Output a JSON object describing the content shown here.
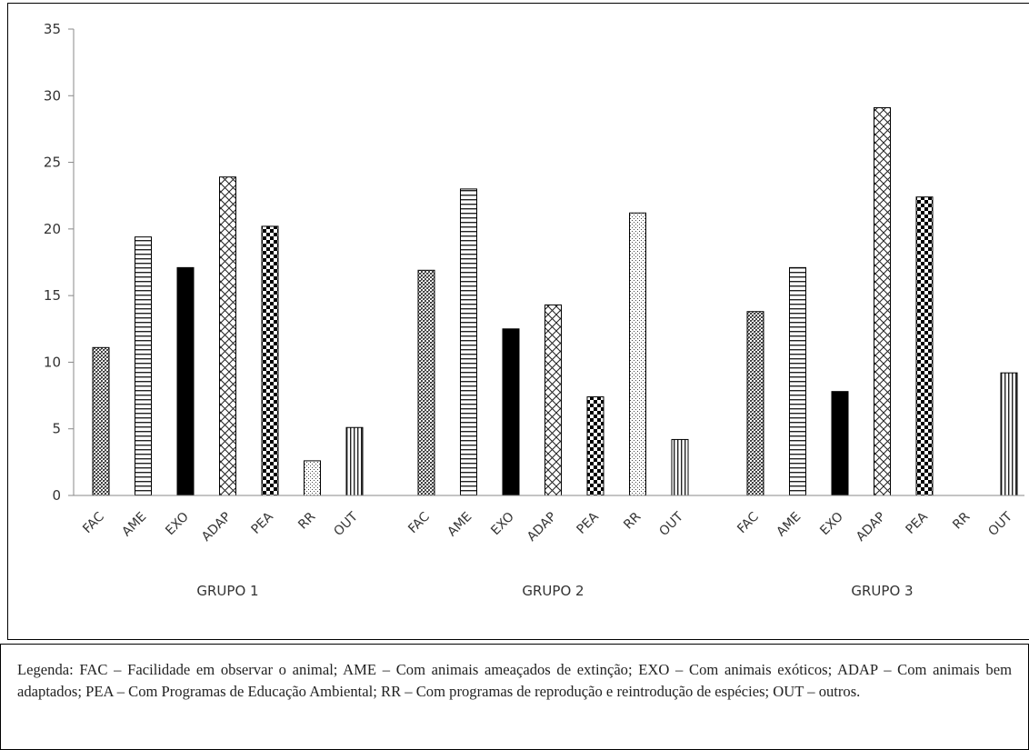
{
  "chart_data": {
    "type": "bar",
    "title": "",
    "xlabel": "",
    "ylabel": "",
    "ylim": [
      0,
      35
    ],
    "yticks": [
      0,
      5,
      10,
      15,
      20,
      25,
      30,
      35
    ],
    "grid": false,
    "categories": [
      "FAC",
      "AME",
      "EXO",
      "ADAP",
      "PEA",
      "RR",
      "OUT"
    ],
    "groups": [
      {
        "name": "GRUPO 1",
        "values": [
          11.1,
          19.4,
          17.1,
          23.9,
          20.2,
          2.6,
          5.1
        ]
      },
      {
        "name": "GRUPO 2",
        "values": [
          16.9,
          23.0,
          12.5,
          14.3,
          7.4,
          21.2,
          4.2
        ]
      },
      {
        "name": "GRUPO 3",
        "values": [
          13.8,
          17.1,
          7.8,
          29.1,
          22.4,
          0,
          9.2
        ]
      }
    ],
    "patterns": {
      "FAC": "dense-crosshatch",
      "AME": "horizontal-lines",
      "EXO": "solid-black",
      "ADAP": "diagonal-crosshatch",
      "PEA": "checkerboard",
      "RR": "dots",
      "OUT": "vertical-lines"
    }
  },
  "legend": {
    "text": "Legenda: FAC – Facilidade em observar o animal; AME – Com animais ameaçados de extinção; EXO – Com animais exóticos; ADAP – Com animais bem adaptados; PEA – Com Programas de Educação Ambiental; RR – Com programas de reprodução e reintrodução de espécies; OUT – outros."
  }
}
